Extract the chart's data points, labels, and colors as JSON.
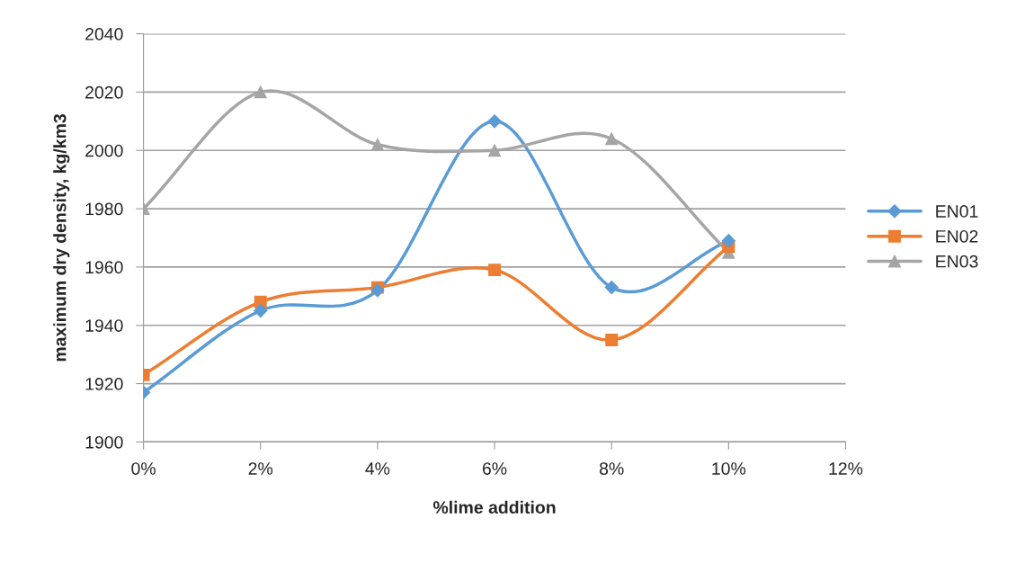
{
  "chart_data": {
    "type": "line",
    "xlabel": "%lime addition",
    "ylabel": "maximum dry density, kg/km3",
    "x": [
      0,
      2,
      4,
      6,
      8,
      10
    ],
    "series": [
      {
        "name": "EN01",
        "color": "#5b9bd5",
        "marker": "diamond",
        "values": [
          1917,
          1945,
          1952,
          2010,
          1953,
          1969
        ]
      },
      {
        "name": "EN02",
        "color": "#ed7d31",
        "marker": "square",
        "values": [
          1923,
          1948,
          1953,
          1959,
          1935,
          1967
        ]
      },
      {
        "name": "EN03",
        "color": "#a5a5a5",
        "marker": "triangle",
        "values": [
          1980,
          2020,
          2002,
          2000,
          2004,
          1965
        ]
      }
    ],
    "xlim": [
      0,
      12
    ],
    "xticks": [
      {
        "value": 0,
        "label": "0%"
      },
      {
        "value": 2,
        "label": "2%"
      },
      {
        "value": 4,
        "label": "4%"
      },
      {
        "value": 6,
        "label": "6%"
      },
      {
        "value": 8,
        "label": "8%"
      },
      {
        "value": 10,
        "label": "10%"
      },
      {
        "value": 12,
        "label": "12%"
      }
    ],
    "ylim": [
      1900,
      2040
    ],
    "yticks": [
      1900,
      1920,
      1940,
      1960,
      1980,
      2000,
      2020,
      2040
    ],
    "grid": "y",
    "legend": "right",
    "line_style": "solid"
  }
}
